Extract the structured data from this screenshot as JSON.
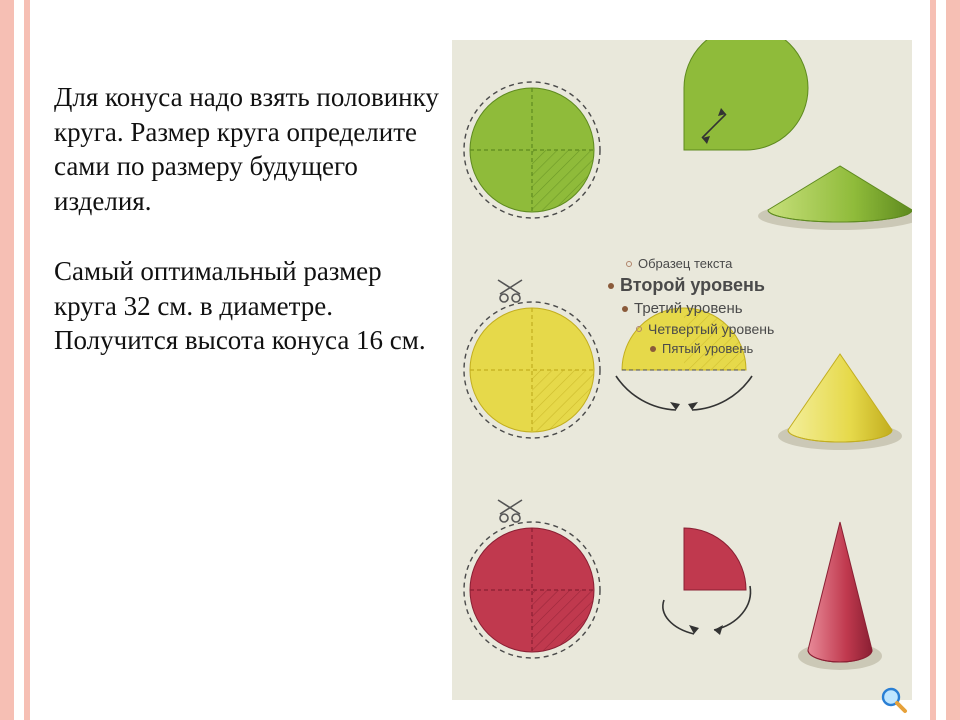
{
  "frame": {
    "outer_color": "#f6bfb4",
    "mid_color": "#ffffff",
    "inner_color": "#f6bfb4"
  },
  "text": {
    "paragraph1": "Для конуса надо взять половинку круга. Размер круга определите сами по размеру будущего изделия.",
    "paragraph2": "Самый оптимальный размер круга 32 см. в диаметре. Получится высота конуса 16 см.",
    "font_size_pt": 20,
    "color": "#111111"
  },
  "placeholder_list": {
    "items": [
      {
        "label": "Образец текста",
        "bullet": "open",
        "size": 13,
        "indent": 24
      },
      {
        "label": "Второй уровень",
        "bullet": "filled",
        "size": 18,
        "indent": 6,
        "bold": true
      },
      {
        "label": "Третий уровень",
        "bullet": "filled",
        "size": 15,
        "indent": 20
      },
      {
        "label": "Четвертый уровень",
        "bullet": "open",
        "size": 14,
        "indent": 34
      },
      {
        "label": "Пятый уровень",
        "bullet": "filled",
        "size": 13,
        "indent": 48
      }
    ],
    "text_color": "#4a4a4a"
  },
  "diagram": {
    "background": "#e9e8db",
    "scissor_color": "#555555",
    "arrow_color": "#333333",
    "dash_color": "#4a4a4a",
    "shadow_color": "#b7b29c",
    "rows": [
      {
        "tint": {
          "fill": "#8fbb3a",
          "dark": "#5e8a1f",
          "light": "#c6df7a"
        },
        "circle_quarters": 4,
        "sector_removed_deg": 90,
        "cone_height_ratio": 0.55
      },
      {
        "tint": {
          "fill": "#e6d94a",
          "dark": "#c2ae1f",
          "light": "#f3ee9a"
        },
        "circle_quarters": 4,
        "sector_removed_deg": 180,
        "cone_height_ratio": 0.95
      },
      {
        "tint": {
          "fill": "#c0394e",
          "dark": "#8a1f33",
          "light": "#e88a98"
        },
        "circle_quarters": 4,
        "sector_removed_deg": 270,
        "cone_height_ratio": 1.6
      }
    ]
  },
  "magnifier": {
    "glass_fill": "#bfe6ff",
    "rim": "#2a7fd4",
    "handle": "#e6a13a"
  }
}
